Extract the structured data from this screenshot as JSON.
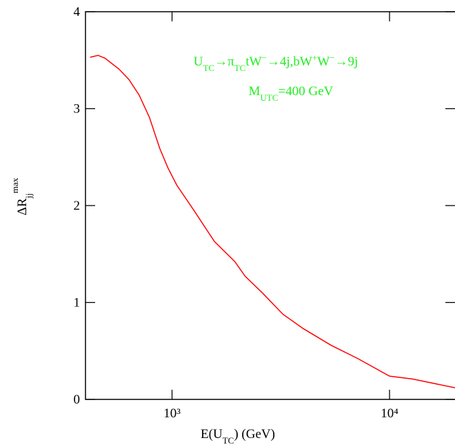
{
  "chart_data": {
    "type": "line",
    "log_x": true,
    "x_label": [
      "E(U",
      "TC",
      ") (GeV)"
    ],
    "y_label": [
      "ΔR",
      "jj",
      "max"
    ],
    "annotations": [
      [
        "U",
        "TC",
        "→π",
        "TC",
        "tW",
        "−",
        "→4j,bW",
        "+",
        "W",
        "−",
        "→9j"
      ],
      [
        "M",
        "UTC",
        "=400 GeV"
      ]
    ],
    "annotation_color": "#22ee22",
    "x": [
      420,
      457,
      492,
      569,
      634,
      706,
      787,
      878,
      957,
      1052,
      1261,
      1566,
      1947,
      2169,
      2600,
      3230,
      4015,
      5370,
      7166,
      10000,
      12800,
      20000
    ],
    "series": [
      {
        "color": "#ff0000",
        "values": [
          3.53,
          3.55,
          3.52,
          3.41,
          3.3,
          3.14,
          2.91,
          2.59,
          2.39,
          2.21,
          1.95,
          1.63,
          1.42,
          1.27,
          1.1,
          0.88,
          0.73,
          0.56,
          0.42,
          0.24,
          0.21,
          0.12
        ]
      }
    ],
    "xlim": [
      400,
      20000
    ],
    "xticks": [
      {
        "value": 1000,
        "label": "10³"
      },
      {
        "value": 10000,
        "label": "10⁴"
      }
    ],
    "ylim": [
      0,
      4
    ],
    "yticks": [
      0,
      1,
      2,
      3,
      4
    ]
  }
}
